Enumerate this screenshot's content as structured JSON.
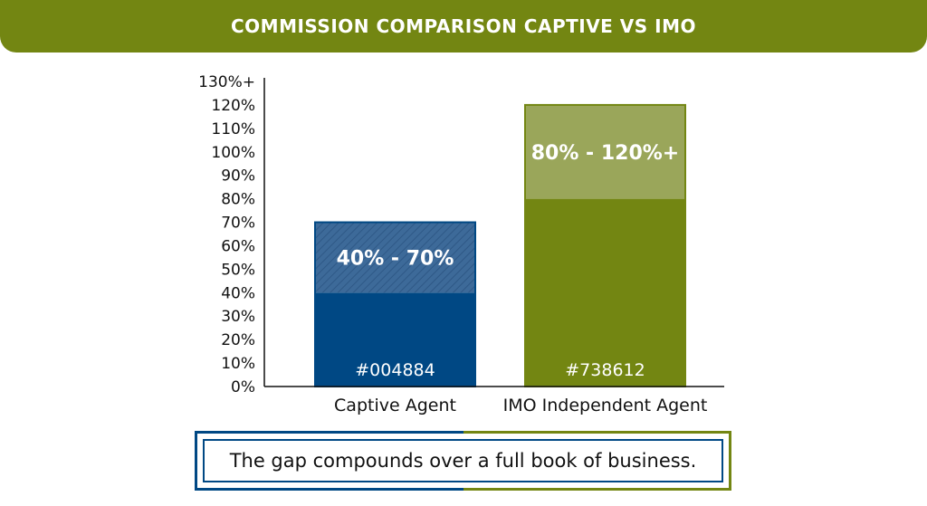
{
  "title": "COMMISSION COMPARISON CAPTIVE VS IMO",
  "colors": {
    "captive": "#004884",
    "imo": "#738612",
    "imo_light": "#9aa65a",
    "header": "#738612",
    "axis": "#111111"
  },
  "chart_data": {
    "type": "bar",
    "categories": [
      "Captive Agent",
      "IMO Independent Agent"
    ],
    "yticks": [
      "0%",
      "10%",
      "20%",
      "30%",
      "40%",
      "50%",
      "60%",
      "70%",
      "80%",
      "90%",
      "100%",
      "110%",
      "120%",
      "130%+"
    ],
    "ylim": [
      0,
      130
    ],
    "series": [
      {
        "category": "Captive Agent",
        "range_low": 40,
        "range_high": 70,
        "range_label": "40% - 70%",
        "color_label": "#004884"
      },
      {
        "category": "IMO Independent Agent",
        "range_low": 80,
        "range_high": 120,
        "range_label": "80% - 120%+",
        "color_label": "#738612"
      }
    ],
    "grid": false,
    "legend": "none"
  },
  "callout": {
    "text": "The gap compounds over a full book of business."
  }
}
